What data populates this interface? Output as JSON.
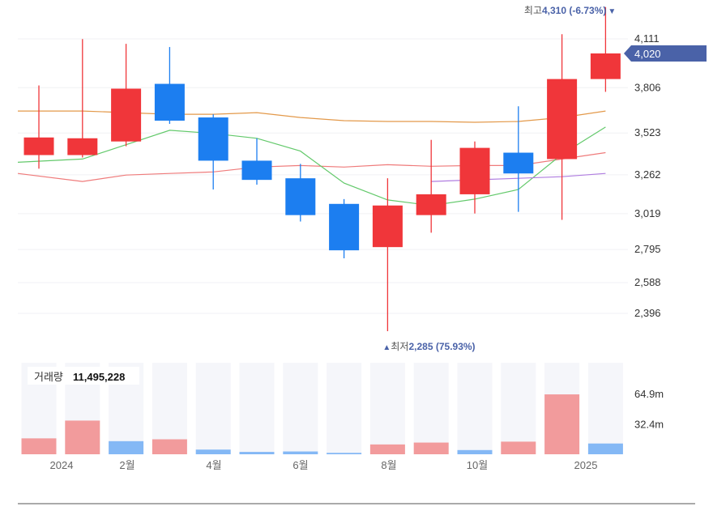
{
  "chart_data": [
    {
      "type": "candlestick",
      "title": "",
      "y_ticks": [
        4111,
        3806,
        3523,
        3262,
        3019,
        2795,
        2588,
        2396
      ],
      "current_price": "4,020",
      "high_annotation": {
        "prefix": "최고",
        "value": "4,310 (-6.73%)",
        "arrow": "▼"
      },
      "low_annotation": {
        "prefix": "최저",
        "value": "2,285 (75.93%)",
        "arrow": "▲"
      },
      "candles": [
        {
          "open": 3385,
          "close": 3495,
          "high": 3820,
          "low": 3300
        },
        {
          "open": 3385,
          "close": 3490,
          "high": 4110,
          "low": 3370
        },
        {
          "open": 3470,
          "close": 3800,
          "high": 4080,
          "low": 3440
        },
        {
          "open": 3830,
          "close": 3600,
          "high": 4060,
          "low": 3580
        },
        {
          "open": 3620,
          "close": 3350,
          "high": 3640,
          "low": 3170
        },
        {
          "open": 3350,
          "close": 3230,
          "high": 3490,
          "low": 3200
        },
        {
          "open": 3240,
          "close": 3010,
          "high": 3330,
          "low": 2970
        },
        {
          "open": 3080,
          "close": 2790,
          "high": 3110,
          "low": 2740
        },
        {
          "open": 2810,
          "close": 3070,
          "high": 3240,
          "low": 2285
        },
        {
          "open": 3010,
          "close": 3140,
          "high": 3480,
          "low": 2900
        },
        {
          "open": 3140,
          "close": 3430,
          "high": 3470,
          "low": 3020
        },
        {
          "open": 3400,
          "close": 3270,
          "high": 3690,
          "low": 3030
        },
        {
          "open": 3360,
          "close": 3860,
          "high": 4140,
          "low": 2980
        },
        {
          "open": 3860,
          "close": 4020,
          "high": 4310,
          "low": 3780
        }
      ],
      "moving_averages": [
        {
          "color": "#e3994a",
          "values": [
            3660,
            3660,
            3650,
            3640,
            3640,
            3650,
            3620,
            3600,
            3595,
            3595,
            3590,
            3595,
            3620,
            3660
          ]
        },
        {
          "color": "#ef7b7b",
          "values": [
            3270,
            3220,
            3260,
            3270,
            3280,
            3310,
            3320,
            3310,
            3325,
            3315,
            3320,
            3320,
            3360,
            3400
          ]
        },
        {
          "color": "#63c96b",
          "values": [
            3340,
            3360,
            3450,
            3540,
            3520,
            3490,
            3410,
            3210,
            3105,
            3070,
            3110,
            3170,
            3390,
            3560
          ]
        },
        {
          "color": "#b07de0",
          "start": 9,
          "values": [
            3220,
            3230,
            3240,
            3250,
            3270
          ]
        }
      ],
      "colors": {
        "up": "#f0363a",
        "down": "#1c7ef0",
        "up_volume": "#f29b9c",
        "down_volume": "#84b8f5",
        "current_tag": "#4a62a8"
      }
    },
    {
      "type": "bar",
      "title": "거래량",
      "title_value": "11,495,228",
      "y_ticks": [
        {
          "label": "64.9m",
          "value": 64.9
        },
        {
          "label": "32.4m",
          "value": 32.4
        }
      ],
      "x_tick_labels": [
        "2024",
        "2월",
        "4월",
        "6월",
        "8월",
        "10월",
        "2025"
      ],
      "values": [
        17,
        36,
        14,
        16,
        5,
        2.5,
        3,
        1.5,
        10.5,
        12.5,
        4.5,
        13.5,
        64,
        11.5
      ],
      "directions": [
        "up",
        "up",
        "down",
        "up",
        "down",
        "down",
        "down",
        "down",
        "up",
        "up",
        "down",
        "up",
        "up",
        "down"
      ]
    }
  ]
}
